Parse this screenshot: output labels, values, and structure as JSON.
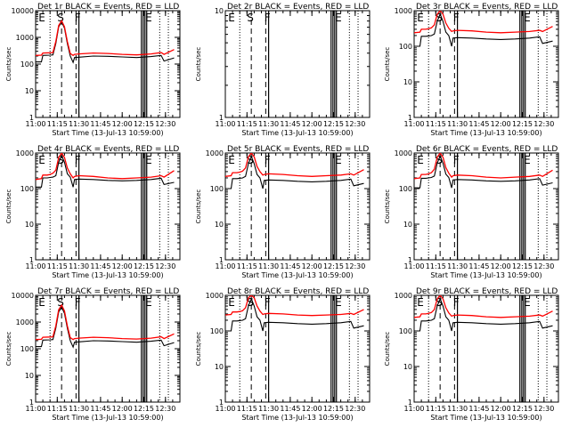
{
  "colors": {
    "background": "#ffffff",
    "axes": "#000000",
    "events": "#000000",
    "lld": "#ff0000"
  },
  "panel_common": {
    "xlabel": "Start Time (13-Jul-13 10:59:00)",
    "ylabel": "Counts/sec",
    "x_ticks": [
      "11:00",
      "11:15",
      "11:30",
      "11:45",
      "12:00",
      "12:15",
      "12:30"
    ],
    "y_ticks": [
      "1",
      "10",
      "100",
      "1000",
      "10000"
    ],
    "flag_labels": [
      "E",
      "S",
      "F",
      "E"
    ]
  },
  "chart_data": [
    {
      "type": "line",
      "title": "Det 1r BLACK = Events, RED = LLD",
      "xlabel": "Start Time (13-Jul-13 10:59:00)",
      "ylabel": "Counts/sec",
      "y_scale": "log",
      "ylim": [
        1,
        10000
      ],
      "xlim": [
        "11:00",
        "12:40"
      ],
      "series": [
        {
          "name": "Events",
          "color": "#000000",
          "x": [
            "11:00",
            "11:04",
            "11:05",
            "11:10",
            "11:12",
            "11:14",
            "11:16",
            "11:18",
            "11:20",
            "11:22",
            "11:24",
            "11:26",
            "11:27",
            "11:30",
            "11:40",
            "11:50",
            "12:00",
            "12:10",
            "12:20",
            "12:27",
            "12:29",
            "12:36"
          ],
          "y": [
            120,
            120,
            210,
            215,
            220,
            600,
            2500,
            3800,
            2200,
            600,
            200,
            115,
            175,
            180,
            200,
            195,
            185,
            175,
            190,
            210,
            130,
            170
          ]
        },
        {
          "name": "LLD",
          "color": "#ff0000",
          "x": [
            "11:00",
            "11:04",
            "11:05",
            "11:10",
            "11:12",
            "11:14",
            "11:16",
            "11:18",
            "11:20",
            "11:22",
            "11:24",
            "11:26",
            "11:27",
            "11:30",
            "11:40",
            "11:50",
            "12:00",
            "12:10",
            "12:20",
            "12:27",
            "12:29",
            "12:36"
          ],
          "y": [
            210,
            215,
            260,
            265,
            270,
            700,
            2800,
            4200,
            2500,
            700,
            250,
            210,
            230,
            240,
            260,
            250,
            230,
            220,
            240,
            270,
            230,
            350
          ]
        }
      ]
    },
    {
      "type": "line",
      "title": "Det 2r BLACK = Events, RED = LLD",
      "xlabel": "Start Time (13-Jul-13 10:59:00)",
      "ylabel": "Counts/sec",
      "y_scale": "log",
      "ylim": [
        1,
        10
      ],
      "xlim": [
        "11:00",
        "12:40"
      ],
      "series": []
    },
    {
      "type": "line",
      "title": "Det 3r BLACK = Events, RED = LLD",
      "xlabel": "Start Time (13-Jul-13 10:59:00)",
      "ylabel": "Counts/sec",
      "y_scale": "log",
      "ylim": [
        1,
        1000
      ],
      "xlim": [
        "11:00",
        "12:40"
      ],
      "series": [
        {
          "name": "Events",
          "color": "#000000",
          "x": [
            "11:00",
            "11:04",
            "11:05",
            "11:08",
            "11:10",
            "11:12",
            "11:14",
            "11:16",
            "11:18",
            "11:20",
            "11:22",
            "11:24",
            "11:26",
            "11:27",
            "11:30",
            "11:40",
            "11:50",
            "12:00",
            "12:10",
            "12:20",
            "12:27",
            "12:29",
            "12:36"
          ],
          "y": [
            100,
            100,
            190,
            190,
            195,
            200,
            220,
            500,
            800,
            500,
            250,
            200,
            100,
            170,
            175,
            170,
            160,
            155,
            160,
            170,
            185,
            120,
            140
          ]
        },
        {
          "name": "LLD",
          "color": "#ff0000",
          "x": [
            "11:00",
            "11:04",
            "11:05",
            "11:08",
            "11:10",
            "11:12",
            "11:14",
            "11:16",
            "11:18",
            "11:20",
            "11:22",
            "11:24",
            "11:26",
            "11:27",
            "11:30",
            "11:40",
            "11:50",
            "12:00",
            "12:10",
            "12:20",
            "12:27",
            "12:29",
            "12:36"
          ],
          "y": [
            240,
            250,
            300,
            300,
            310,
            330,
            400,
            800,
            1000,
            800,
            450,
            320,
            260,
            270,
            280,
            270,
            250,
            240,
            250,
            260,
            280,
            260,
            360
          ]
        }
      ]
    },
    {
      "type": "line",
      "title": "Det 4r BLACK = Events, RED = LLD",
      "xlabel": "Start Time (13-Jul-13 10:59:00)",
      "ylabel": "Counts/sec",
      "y_scale": "log",
      "ylim": [
        1,
        1000
      ],
      "xlim": [
        "11:00",
        "12:40"
      ],
      "series": [
        {
          "name": "Events",
          "color": "#000000",
          "x": [
            "11:00",
            "11:04",
            "11:05",
            "11:08",
            "11:10",
            "11:12",
            "11:14",
            "11:16",
            "11:18",
            "11:20",
            "11:22",
            "11:24",
            "11:26",
            "11:27",
            "11:30",
            "11:40",
            "11:50",
            "12:00",
            "12:10",
            "12:20",
            "12:27",
            "12:29",
            "12:36"
          ],
          "y": [
            110,
            110,
            200,
            200,
            205,
            210,
            230,
            550,
            850,
            550,
            260,
            210,
            110,
            180,
            185,
            180,
            170,
            165,
            170,
            180,
            195,
            130,
            150
          ]
        },
        {
          "name": "LLD",
          "color": "#ff0000",
          "x": [
            "11:00",
            "11:04",
            "11:05",
            "11:08",
            "11:10",
            "11:12",
            "11:14",
            "11:16",
            "11:18",
            "11:20",
            "11:22",
            "11:24",
            "11:26",
            "11:27",
            "11:30",
            "11:40",
            "11:50",
            "12:00",
            "12:10",
            "12:20",
            "12:27",
            "12:29",
            "12:36"
          ],
          "y": [
            180,
            190,
            240,
            240,
            250,
            270,
            330,
            750,
            1000,
            750,
            380,
            260,
            200,
            220,
            230,
            220,
            200,
            190,
            200,
            210,
            230,
            210,
            320
          ]
        }
      ]
    },
    {
      "type": "line",
      "title": "Det 5r BLACK = Events, RED = LLD",
      "xlabel": "Start Time (13-Jul-13 10:59:00)",
      "ylabel": "Counts/sec",
      "y_scale": "log",
      "ylim": [
        1,
        1000
      ],
      "xlim": [
        "11:00",
        "12:40"
      ],
      "series": [
        {
          "name": "Events",
          "color": "#000000",
          "x": [
            "11:00",
            "11:04",
            "11:05",
            "11:08",
            "11:10",
            "11:12",
            "11:14",
            "11:16",
            "11:18",
            "11:20",
            "11:22",
            "11:24",
            "11:26",
            "11:27",
            "11:30",
            "11:40",
            "11:50",
            "12:00",
            "12:10",
            "12:20",
            "12:27",
            "12:29",
            "12:36"
          ],
          "y": [
            100,
            100,
            190,
            190,
            195,
            200,
            220,
            500,
            800,
            500,
            250,
            200,
            100,
            170,
            175,
            170,
            160,
            155,
            160,
            170,
            185,
            120,
            140
          ]
        },
        {
          "name": "LLD",
          "color": "#ff0000",
          "x": [
            "11:00",
            "11:04",
            "11:05",
            "11:08",
            "11:10",
            "11:12",
            "11:14",
            "11:16",
            "11:18",
            "11:20",
            "11:22",
            "11:24",
            "11:26",
            "11:27",
            "11:30",
            "11:40",
            "11:50",
            "12:00",
            "12:10",
            "12:20",
            "12:27",
            "12:29",
            "12:36"
          ],
          "y": [
            220,
            230,
            280,
            280,
            290,
            310,
            380,
            780,
            1000,
            780,
            420,
            300,
            240,
            250,
            260,
            250,
            230,
            220,
            230,
            240,
            260,
            240,
            340
          ]
        }
      ]
    },
    {
      "type": "line",
      "title": "Det 6r BLACK = Events, RED = LLD",
      "xlabel": "Start Time (13-Jul-13 10:59:00)",
      "ylabel": "Counts/sec",
      "y_scale": "log",
      "ylim": [
        1,
        1000
      ],
      "xlim": [
        "11:00",
        "12:40"
      ],
      "series": [
        {
          "name": "Events",
          "color": "#000000",
          "x": [
            "11:00",
            "11:04",
            "11:05",
            "11:08",
            "11:10",
            "11:12",
            "11:14",
            "11:16",
            "11:18",
            "11:20",
            "11:22",
            "11:24",
            "11:26",
            "11:27",
            "11:30",
            "11:40",
            "11:50",
            "12:00",
            "12:10",
            "12:20",
            "12:27",
            "12:29",
            "12:36"
          ],
          "y": [
            105,
            105,
            195,
            195,
            200,
            205,
            225,
            520,
            820,
            520,
            255,
            205,
            105,
            175,
            180,
            175,
            165,
            160,
            165,
            175,
            190,
            125,
            145
          ]
        },
        {
          "name": "LLD",
          "color": "#ff0000",
          "x": [
            "11:00",
            "11:04",
            "11:05",
            "11:08",
            "11:10",
            "11:12",
            "11:14",
            "11:16",
            "11:18",
            "11:20",
            "11:22",
            "11:24",
            "11:26",
            "11:27",
            "11:30",
            "11:40",
            "11:50",
            "12:00",
            "12:10",
            "12:20",
            "12:27",
            "12:29",
            "12:36"
          ],
          "y": [
            190,
            200,
            250,
            250,
            260,
            280,
            350,
            760,
            1000,
            760,
            390,
            270,
            210,
            230,
            240,
            230,
            210,
            200,
            210,
            220,
            240,
            220,
            330
          ]
        }
      ]
    },
    {
      "type": "line",
      "title": "Det 7r BLACK = Events, RED = LLD",
      "xlabel": "Start Time (13-Jul-13 10:59:00)",
      "ylabel": "Counts/sec",
      "y_scale": "log",
      "ylim": [
        1,
        10000
      ],
      "xlim": [
        "11:00",
        "12:40"
      ],
      "series": [
        {
          "name": "Events",
          "color": "#000000",
          "x": [
            "11:00",
            "11:04",
            "11:05",
            "11:10",
            "11:12",
            "11:14",
            "11:16",
            "11:18",
            "11:20",
            "11:22",
            "11:24",
            "11:26",
            "11:27",
            "11:30",
            "11:40",
            "11:50",
            "12:00",
            "12:10",
            "12:20",
            "12:27",
            "12:29",
            "12:36"
          ],
          "y": [
            120,
            120,
            210,
            215,
            220,
            600,
            2400,
            3600,
            2100,
            600,
            200,
            115,
            175,
            180,
            200,
            195,
            185,
            175,
            190,
            210,
            130,
            170
          ]
        },
        {
          "name": "LLD",
          "color": "#ff0000",
          "x": [
            "11:00",
            "11:04",
            "11:05",
            "11:10",
            "11:12",
            "11:14",
            "11:16",
            "11:18",
            "11:20",
            "11:22",
            "11:24",
            "11:26",
            "11:27",
            "11:30",
            "11:40",
            "11:50",
            "12:00",
            "12:10",
            "12:20",
            "12:27",
            "12:29",
            "12:36"
          ],
          "y": [
            220,
            225,
            270,
            275,
            280,
            720,
            2900,
            4300,
            2600,
            720,
            260,
            220,
            240,
            250,
            270,
            260,
            240,
            230,
            250,
            280,
            240,
            360
          ]
        }
      ]
    },
    {
      "type": "line",
      "title": "Det 8r BLACK = Events, RED = LLD",
      "xlabel": "Start Time (13-Jul-13 10:59:00)",
      "ylabel": "Counts/sec",
      "y_scale": "log",
      "ylim": [
        1,
        1000
      ],
      "xlim": [
        "11:00",
        "12:40"
      ],
      "series": [
        {
          "name": "Events",
          "color": "#000000",
          "x": [
            "11:00",
            "11:04",
            "11:05",
            "11:08",
            "11:10",
            "11:12",
            "11:14",
            "11:16",
            "11:18",
            "11:20",
            "11:22",
            "11:24",
            "11:26",
            "11:27",
            "11:30",
            "11:40",
            "11:50",
            "12:00",
            "12:10",
            "12:20",
            "12:27",
            "12:29",
            "12:36"
          ],
          "y": [
            100,
            100,
            190,
            190,
            195,
            200,
            220,
            500,
            800,
            500,
            250,
            200,
            100,
            170,
            175,
            170,
            160,
            155,
            160,
            170,
            185,
            120,
            140
          ]
        },
        {
          "name": "LLD",
          "color": "#ff0000",
          "x": [
            "11:00",
            "11:04",
            "11:05",
            "11:08",
            "11:10",
            "11:12",
            "11:14",
            "11:16",
            "11:18",
            "11:20",
            "11:22",
            "11:24",
            "11:26",
            "11:27",
            "11:30",
            "11:40",
            "11:50",
            "12:00",
            "12:10",
            "12:20",
            "12:27",
            "12:29",
            "12:36"
          ],
          "y": [
            280,
            290,
            340,
            340,
            350,
            370,
            450,
            850,
            1000,
            850,
            500,
            360,
            290,
            300,
            310,
            300,
            280,
            270,
            280,
            290,
            310,
            290,
            400
          ]
        }
      ]
    },
    {
      "type": "line",
      "title": "Det 9r BLACK = Events, RED = LLD",
      "xlabel": "Start Time (13-Jul-13 10:59:00)",
      "ylabel": "Counts/sec",
      "y_scale": "log",
      "ylim": [
        1,
        1000
      ],
      "xlim": [
        "11:00",
        "12:40"
      ],
      "series": [
        {
          "name": "Events",
          "color": "#000000",
          "x": [
            "11:00",
            "11:04",
            "11:05",
            "11:08",
            "11:10",
            "11:12",
            "11:14",
            "11:16",
            "11:18",
            "11:20",
            "11:22",
            "11:24",
            "11:26",
            "11:27",
            "11:30",
            "11:40",
            "11:50",
            "12:00",
            "12:10",
            "12:20",
            "12:27",
            "12:29",
            "12:36"
          ],
          "y": [
            100,
            100,
            190,
            190,
            195,
            200,
            220,
            500,
            800,
            500,
            250,
            200,
            100,
            170,
            175,
            170,
            160,
            155,
            160,
            170,
            185,
            120,
            140
          ]
        },
        {
          "name": "LLD",
          "color": "#ff0000",
          "x": [
            "11:00",
            "11:04",
            "11:05",
            "11:08",
            "11:10",
            "11:12",
            "11:14",
            "11:16",
            "11:18",
            "11:20",
            "11:22",
            "11:24",
            "11:26",
            "11:27",
            "11:30",
            "11:40",
            "11:50",
            "12:00",
            "12:10",
            "12:20",
            "12:27",
            "12:29",
            "12:36"
          ],
          "y": [
            240,
            250,
            300,
            300,
            310,
            330,
            400,
            800,
            1000,
            800,
            450,
            320,
            260,
            270,
            280,
            270,
            250,
            240,
            250,
            260,
            280,
            260,
            360
          ]
        }
      ]
    }
  ]
}
